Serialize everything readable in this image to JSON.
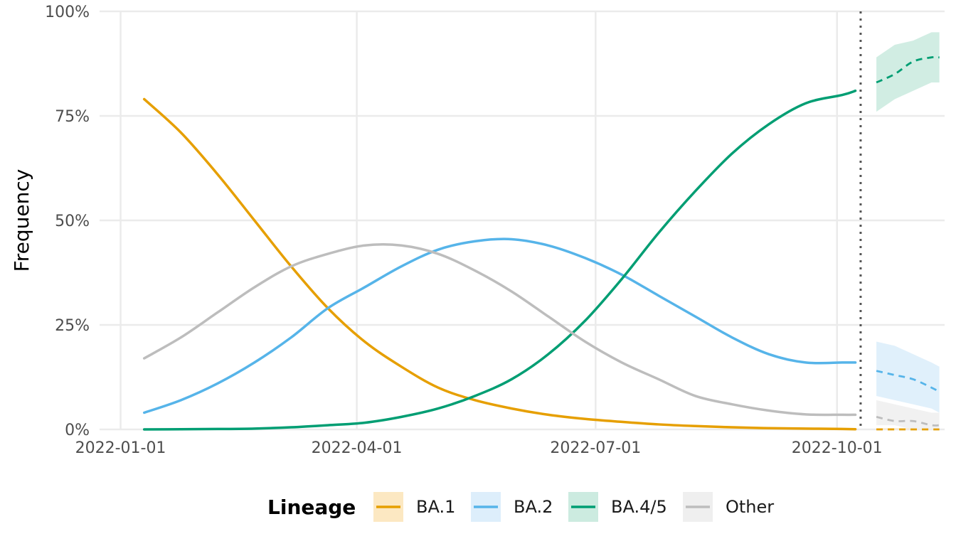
{
  "chart_data": {
    "type": "line",
    "ylabel": "Frequency",
    "xlabel": "",
    "x_ticks": [
      "2022-01-01",
      "2022-04-01",
      "2022-07-01",
      "2022-10-01"
    ],
    "y_ticks": [
      "0%",
      "25%",
      "50%",
      "75%",
      "100%"
    ],
    "ylim": [
      0,
      1
    ],
    "xlim": [
      "2021-12-24",
      "2022-11-11"
    ],
    "grid": true,
    "legend_position": "bottom",
    "legend_title": "Lineage",
    "nowcast_date": "2022-10-10",
    "observed_dates": [
      "2022-01-10",
      "2022-01-24",
      "2022-02-07",
      "2022-02-21",
      "2022-03-07",
      "2022-03-21",
      "2022-04-04",
      "2022-04-18",
      "2022-05-02",
      "2022-05-16",
      "2022-05-30",
      "2022-06-13",
      "2022-06-27",
      "2022-07-11",
      "2022-07-25",
      "2022-08-08",
      "2022-08-22",
      "2022-09-05",
      "2022-09-19",
      "2022-10-03",
      "2022-10-08"
    ],
    "forecast_dates": [
      "2022-10-16",
      "2022-10-23",
      "2022-10-30",
      "2022-11-06",
      "2022-11-09"
    ],
    "series": [
      {
        "name": "BA.1",
        "color": "#E69F00",
        "fill": "#FCE8C2",
        "observed": [
          0.79,
          0.71,
          0.61,
          0.5,
          0.39,
          0.29,
          0.21,
          0.15,
          0.1,
          0.07,
          0.05,
          0.035,
          0.025,
          0.018,
          0.012,
          0.008,
          0.005,
          0.003,
          0.002,
          0.001,
          0.0005
        ],
        "forecast": [
          0.0,
          0.0,
          0.0,
          0.0,
          0.0
        ],
        "forecast_lower": [
          0.0,
          0.0,
          0.0,
          0.0,
          0.0
        ],
        "forecast_upper": [
          0.003,
          0.003,
          0.003,
          0.003,
          0.003
        ]
      },
      {
        "name": "BA.2",
        "color": "#56B4E9",
        "fill": "#DDEEFB",
        "observed": [
          0.04,
          0.07,
          0.11,
          0.16,
          0.22,
          0.29,
          0.34,
          0.39,
          0.43,
          0.45,
          0.455,
          0.44,
          0.41,
          0.37,
          0.32,
          0.27,
          0.22,
          0.18,
          0.16,
          0.16,
          0.16
        ],
        "forecast": [
          0.14,
          0.13,
          0.12,
          0.1,
          0.09
        ],
        "forecast_lower": [
          0.08,
          0.07,
          0.06,
          0.05,
          0.04
        ],
        "forecast_upper": [
          0.21,
          0.2,
          0.18,
          0.16,
          0.15
        ]
      },
      {
        "name": "BA.4/5",
        "color": "#009E73",
        "fill": "#CCEBE0",
        "observed": [
          0.0,
          0.0005,
          0.001,
          0.002,
          0.005,
          0.01,
          0.016,
          0.03,
          0.05,
          0.08,
          0.12,
          0.18,
          0.26,
          0.36,
          0.47,
          0.57,
          0.66,
          0.73,
          0.78,
          0.8,
          0.81
        ],
        "forecast": [
          0.83,
          0.85,
          0.88,
          0.89,
          0.89
        ],
        "forecast_lower": [
          0.76,
          0.79,
          0.81,
          0.83,
          0.83
        ],
        "forecast_upper": [
          0.89,
          0.92,
          0.93,
          0.95,
          0.95
        ]
      },
      {
        "name": "Other",
        "color": "#BDBDBD",
        "fill": "#EFEFEF",
        "observed": [
          0.17,
          0.22,
          0.28,
          0.34,
          0.39,
          0.42,
          0.44,
          0.44,
          0.42,
          0.38,
          0.33,
          0.27,
          0.21,
          0.16,
          0.12,
          0.08,
          0.06,
          0.045,
          0.036,
          0.035,
          0.035
        ],
        "forecast": [
          0.03,
          0.02,
          0.02,
          0.01,
          0.01
        ],
        "forecast_lower": [
          0.01,
          0.01,
          0.0,
          0.0,
          0.0
        ],
        "forecast_upper": [
          0.07,
          0.06,
          0.05,
          0.04,
          0.04
        ]
      }
    ]
  }
}
